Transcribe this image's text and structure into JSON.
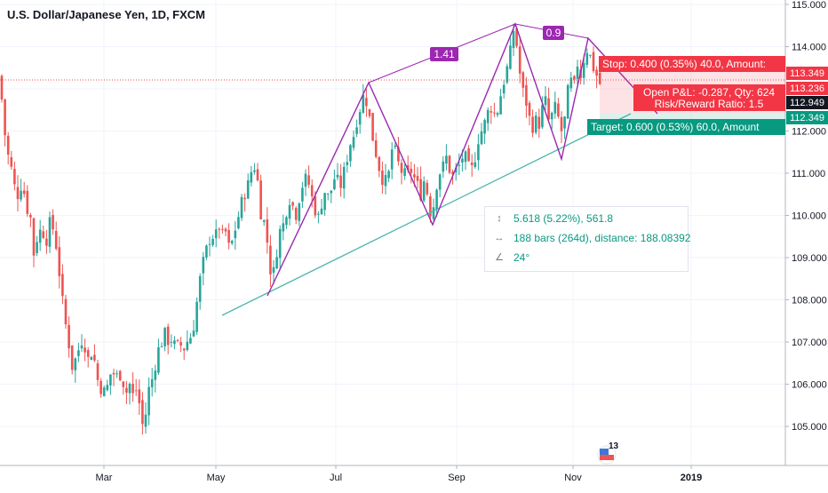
{
  "header": {
    "title": "U.S. Dollar/Japanese Yen, 1D, FXCM"
  },
  "chart_data": {
    "type": "candlestick",
    "title": "U.S. Dollar/Japanese Yen, 1D, FXCM",
    "x_ticks": [
      "Mar",
      "May",
      "Jul",
      "Sep",
      "Nov",
      "2019"
    ],
    "y_ticks": [
      105.0,
      106.0,
      107.0,
      108.0,
      109.0,
      110.0,
      111.0,
      112.0,
      113.0,
      114.0,
      115.0
    ],
    "ylim": [
      104.15,
      115.05
    ],
    "grid": true,
    "price_labels": [
      {
        "value": 113.349,
        "text": "113.349",
        "color": "#f23645"
      },
      {
        "value": 113.236,
        "text": "113.236",
        "color": "#f23645"
      },
      {
        "value": 112.949,
        "text": "112.949",
        "color": "#131722"
      },
      {
        "value": 112.349,
        "text": "112.349",
        "color": "#089981"
      }
    ],
    "pattern_labels": [
      {
        "text": "1.41",
        "color": "#9c27b0"
      },
      {
        "text": "0.9",
        "color": "#9c27b0"
      }
    ],
    "position": {
      "stop": "Stop: 0.400 (0.35%) 40.0, Amount:",
      "open_pnl": "Open P&L: -0.287, Qty: 624",
      "risk_reward": "Risk/Reward Ratio: 1.5",
      "target": "Target: 0.600 (0.53%) 60.0, Amount"
    },
    "measure": {
      "price_range": "5.618 (5.22%), 561.8",
      "bars_range": "188 bars (264d), distance: 188.08392",
      "angle": "24°"
    },
    "icon_badge": "13",
    "colors": {
      "up": "#26a69a",
      "down": "#ef5350",
      "pattern": "#9c27b0",
      "trendline": "#4db6ac",
      "stop": "#f23645",
      "target": "#089981"
    },
    "close_path": [
      [
        0,
        113.3
      ],
      [
        4,
        112.2
      ],
      [
        8,
        111.5
      ],
      [
        12,
        111.2
      ],
      [
        16,
        110.7
      ],
      [
        20,
        110.5
      ],
      [
        25,
        110.8
      ],
      [
        30,
        110.2
      ],
      [
        35,
        109.9
      ],
      [
        38,
        109.1
      ],
      [
        42,
        109.5
      ],
      [
        47,
        109.7
      ],
      [
        52,
        109.4
      ],
      [
        57,
        109.9
      ],
      [
        62,
        109.5
      ],
      [
        66,
        108.8
      ],
      [
        70,
        108.0
      ],
      [
        74,
        107.4
      ],
      [
        78,
        106.9
      ],
      [
        82,
        106.3
      ],
      [
        86,
        106.7
      ],
      [
        90,
        106.9
      ],
      [
        94,
        107.2
      ],
      [
        98,
        106.5
      ],
      [
        102,
        106.8
      ],
      [
        106,
        106.6
      ],
      [
        110,
        106.1
      ],
      [
        114,
        105.9
      ],
      [
        118,
        105.8
      ],
      [
        122,
        106.0
      ],
      [
        126,
        106.4
      ],
      [
        130,
        106.1
      ],
      [
        134,
        106.3
      ],
      [
        138,
        106.1
      ],
      [
        142,
        105.8
      ],
      [
        146,
        106.0
      ],
      [
        150,
        105.7
      ],
      [
        154,
        105.9
      ],
      [
        158,
        105.4
      ],
      [
        162,
        104.8
      ],
      [
        166,
        105.8
      ],
      [
        170,
        106.0
      ],
      [
        174,
        106.4
      ],
      [
        178,
        106.8
      ],
      [
        182,
        107.0
      ],
      [
        186,
        107.2
      ],
      [
        190,
        107.0
      ],
      [
        194,
        107.1
      ],
      [
        198,
        106.8
      ],
      [
        202,
        107.0
      ],
      [
        206,
        106.8
      ],
      [
        210,
        107.0
      ],
      [
        214,
        107.1
      ],
      [
        218,
        107.4
      ],
      [
        222,
        108.0
      ],
      [
        226,
        108.6
      ],
      [
        230,
        109.0
      ],
      [
        234,
        109.3
      ],
      [
        238,
        109.6
      ],
      [
        242,
        109.4
      ],
      [
        246,
        109.8
      ],
      [
        250,
        109.5
      ],
      [
        254,
        109.6
      ],
      [
        258,
        109.2
      ],
      [
        262,
        109.4
      ],
      [
        266,
        109.8
      ],
      [
        270,
        110.1
      ],
      [
        274,
        110.5
      ],
      [
        278,
        110.6
      ],
      [
        282,
        111.0
      ],
      [
        286,
        111.2
      ],
      [
        290,
        110.8
      ],
      [
        294,
        110.0
      ],
      [
        298,
        109.8
      ],
      [
        302,
        109.2
      ],
      [
        306,
        108.4
      ],
      [
        310,
        108.9
      ],
      [
        314,
        109.6
      ],
      [
        318,
        109.7
      ],
      [
        322,
        110.1
      ],
      [
        326,
        110.4
      ],
      [
        330,
        110.2
      ],
      [
        334,
        110.0
      ],
      [
        338,
        110.6
      ],
      [
        342,
        110.8
      ],
      [
        346,
        110.9
      ],
      [
        350,
        110.5
      ],
      [
        354,
        110.2
      ],
      [
        358,
        109.9
      ],
      [
        362,
        110.3
      ],
      [
        366,
        110.6
      ],
      [
        370,
        110.4
      ],
      [
        374,
        110.7
      ],
      [
        378,
        111.0
      ],
      [
        382,
        110.6
      ],
      [
        386,
        110.9
      ],
      [
        390,
        111.3
      ],
      [
        394,
        111.7
      ],
      [
        398,
        111.9
      ],
      [
        402,
        112.3
      ],
      [
        406,
        112.6
      ],
      [
        410,
        112.9
      ],
      [
        414,
        112.6
      ],
      [
        418,
        112.0
      ],
      [
        422,
        111.6
      ],
      [
        426,
        111.2
      ],
      [
        430,
        110.9
      ],
      [
        434,
        110.8
      ],
      [
        438,
        111.0
      ],
      [
        442,
        111.7
      ],
      [
        446,
        111.4
      ],
      [
        450,
        111.1
      ],
      [
        454,
        111.0
      ],
      [
        458,
        110.9
      ],
      [
        462,
        111.1
      ],
      [
        466,
        110.9
      ],
      [
        470,
        110.7
      ],
      [
        474,
        110.5
      ],
      [
        478,
        110.9
      ],
      [
        482,
        110.4
      ],
      [
        486,
        109.9
      ],
      [
        490,
        110.6
      ],
      [
        494,
        111.0
      ],
      [
        498,
        111.1
      ],
      [
        502,
        111.4
      ],
      [
        506,
        111.1
      ],
      [
        510,
        110.9
      ],
      [
        514,
        111.1
      ],
      [
        518,
        111.2
      ],
      [
        522,
        111.5
      ],
      [
        526,
        111.2
      ],
      [
        530,
        111.0
      ],
      [
        534,
        111.3
      ],
      [
        538,
        111.8
      ],
      [
        542,
        112.0
      ],
      [
        546,
        112.2
      ],
      [
        550,
        112.5
      ],
      [
        554,
        112.6
      ],
      [
        558,
        112.3
      ],
      [
        562,
        112.7
      ],
      [
        566,
        113.1
      ],
      [
        570,
        113.4
      ],
      [
        574,
        113.8
      ],
      [
        578,
        114.4
      ],
      [
        582,
        114.0
      ],
      [
        586,
        113.2
      ],
      [
        590,
        112.8
      ],
      [
        594,
        112.6
      ],
      [
        598,
        112.0
      ],
      [
        602,
        112.3
      ],
      [
        606,
        112.1
      ],
      [
        610,
        112.5
      ],
      [
        614,
        112.7
      ],
      [
        618,
        112.2
      ],
      [
        622,
        112.4
      ],
      [
        626,
        112.6
      ],
      [
        630,
        112.1
      ],
      [
        634,
        111.9
      ],
      [
        638,
        112.8
      ],
      [
        642,
        113.2
      ],
      [
        646,
        113.0
      ],
      [
        650,
        113.6
      ],
      [
        654,
        113.3
      ],
      [
        658,
        113.8
      ],
      [
        662,
        114.0
      ],
      [
        666,
        113.6
      ],
      [
        670,
        113.4
      ],
      [
        674,
        113.2
      ],
      [
        678,
        112.95
      ]
    ]
  }
}
